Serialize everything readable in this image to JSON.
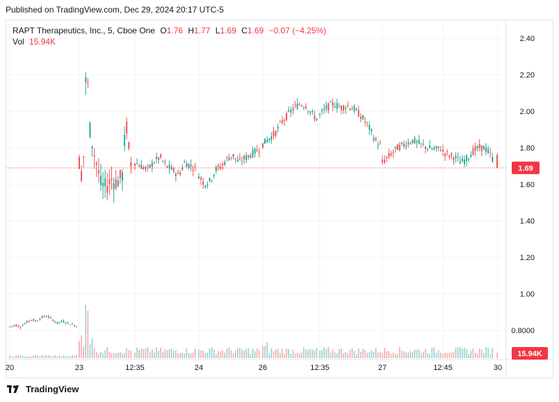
{
  "header": {
    "published": "Published on TradingView.com, Dec 29, 2024 20:17 UTC-5"
  },
  "legend": {
    "symbol": "RAPT Therapeutics, Inc., 5, Cboe One",
    "open_label": "O",
    "open": "1.76",
    "high_label": "H",
    "high": "1.77",
    "low_label": "L",
    "low": "1.69",
    "close_label": "C",
    "close": "1.69",
    "change": "−0.07 (−4.25%)",
    "vol_label": "Vol",
    "vol": "15.94K"
  },
  "footer": {
    "brand": "TradingView",
    "logo_icon": "tradingview-logo-icon"
  },
  "colors": {
    "up": "#26a69a",
    "down": "#ef5350",
    "last_price": "#f23645",
    "grid": "#f0f3fa"
  },
  "chart_data": {
    "type": "candlestick",
    "interval": "5",
    "y_axis": {
      "ticks": [
        "2.40",
        "2.20",
        "2.00",
        "1.80",
        "1.60",
        "1.40",
        "1.20",
        "1.00",
        "0.8000"
      ],
      "range": [
        0.72,
        2.52
      ]
    },
    "x_axis": {
      "ticks": [
        "20",
        "23",
        "12:35",
        "24",
        "26",
        "12:35",
        "27",
        "12:45",
        "30"
      ]
    },
    "last_price_label": "1.69",
    "volume_label": "15.94K",
    "price_segments": [
      {
        "from_tick": "20",
        "to_tick": "23",
        "approx": [
          0.82,
          0.83,
          0.82,
          0.84,
          0.86,
          0.85,
          0.87,
          0.88,
          0.86,
          0.84,
          0.85,
          0.84,
          0.83,
          0.82
        ]
      },
      {
        "from_tick": "23",
        "to_tick": "12:35",
        "approx": [
          1.72,
          1.62,
          2.3,
          1.9,
          1.78,
          1.7,
          1.6,
          1.58,
          1.6,
          1.63,
          1.61,
          1.62,
          1.65,
          1.95,
          1.75,
          1.68
        ]
      },
      {
        "from_tick": "12:35",
        "to_tick": "24",
        "approx": [
          1.72,
          1.7,
          1.68,
          1.72,
          1.75,
          1.7,
          1.68,
          1.65,
          1.72,
          1.7,
          1.68
        ]
      },
      {
        "from_tick": "24",
        "to_tick": "26",
        "approx": [
          1.65,
          1.6,
          1.62,
          1.68,
          1.7,
          1.74,
          1.76,
          1.72,
          1.74,
          1.76,
          1.78,
          1.8
        ]
      },
      {
        "from_tick": "26",
        "to_tick": "12:35",
        "approx": [
          1.82,
          1.85,
          1.88,
          1.94,
          1.98,
          2.02,
          2.04,
          2.03,
          1.98,
          1.95
        ]
      },
      {
        "from_tick": "12:35",
        "to_tick": "27",
        "approx": [
          1.98,
          2.02,
          2.04,
          2.02,
          2.03,
          2.01,
          1.97,
          1.92,
          1.84,
          1.8
        ]
      },
      {
        "from_tick": "27",
        "to_tick": "12:45",
        "approx": [
          1.72,
          1.76,
          1.8,
          1.82,
          1.84,
          1.82,
          1.8,
          1.79,
          1.8
        ]
      },
      {
        "from_tick": "12:45",
        "to_tick": "30",
        "approx": [
          1.78,
          1.76,
          1.75,
          1.72,
          1.74,
          1.78,
          1.8,
          1.8,
          1.76,
          1.69
        ]
      }
    ]
  }
}
